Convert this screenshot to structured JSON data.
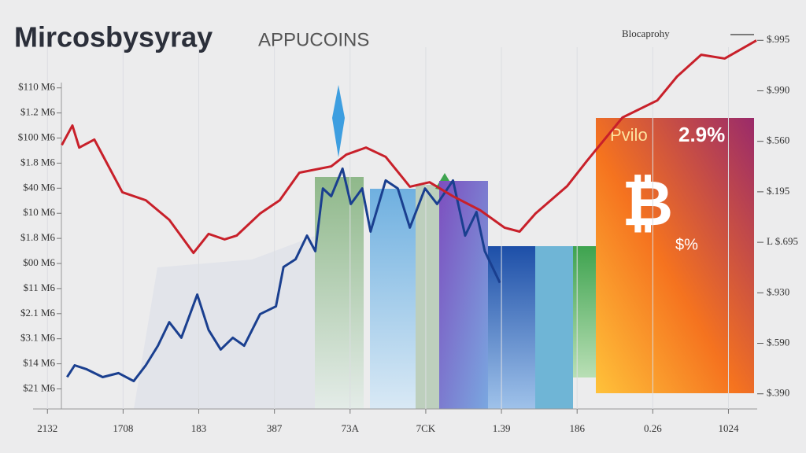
{
  "chart_data": {
    "type": "line",
    "title": "Mircosbysyray",
    "subtitle": "APPUCOINS",
    "xlim": [
      -0.19,
      9.38
    ],
    "xticks": [
      {
        "value": 0,
        "label": "2132"
      },
      {
        "value": 1,
        "label": "1708"
      },
      {
        "value": 2,
        "label": "183"
      },
      {
        "value": 3,
        "label": "387"
      },
      {
        "value": 4,
        "label": "73A"
      },
      {
        "value": 5,
        "label": "7CK"
      },
      {
        "value": 6,
        "label": "1.39"
      },
      {
        "value": 7,
        "label": "186"
      },
      {
        "value": 8,
        "label": "0.26"
      },
      {
        "value": 9,
        "label": "1024"
      }
    ],
    "ylim": [
      -0.8,
      14.5
    ],
    "yticks": [
      {
        "value": 0,
        "label": "$21 M6"
      },
      {
        "value": 1,
        "label": "$14 M6"
      },
      {
        "value": 2,
        "label": "$3.1 M6"
      },
      {
        "value": 3,
        "label": "$2.1 M6"
      },
      {
        "value": 4,
        "label": "$11 M6"
      },
      {
        "value": 5,
        "label": "$00 M6"
      },
      {
        "value": 6,
        "label": "$1.8 M6"
      },
      {
        "value": 7,
        "label": "$10 M6"
      },
      {
        "value": 8,
        "label": "$40 M6"
      },
      {
        "value": 9,
        "label": "$1.8 M6"
      },
      {
        "value": 10,
        "label": "$100 M6"
      },
      {
        "value": 11,
        "label": "$1.2 M6"
      },
      {
        "value": 12,
        "label": "$110 M6"
      }
    ],
    "y2lim": [
      -0.3,
      7.3
    ],
    "y2ticks": [
      {
        "value": 0,
        "label": "$.390"
      },
      {
        "value": 1,
        "label": "$.590"
      },
      {
        "value": 2,
        "label": "$.930"
      },
      {
        "value": 3,
        "label": "L $.695"
      },
      {
        "value": 4,
        "label": "$.195"
      },
      {
        "value": 5,
        "label": "$.560"
      },
      {
        "value": 6,
        "label": "$.990"
      },
      {
        "value": 7,
        "label": "$.995"
      }
    ],
    "grid": true,
    "legend": "top-right",
    "series": [
      {
        "name": "Blocaprohy",
        "color": "#c8202a",
        "x": [
          0.19,
          0.33,
          0.42,
          0.62,
          0.99,
          1.3,
          1.61,
          1.93,
          2.13,
          2.34,
          2.5,
          2.81,
          3.07,
          3.33,
          3.75,
          3.95,
          4.21,
          4.47,
          4.79,
          5.05,
          5.36,
          5.72,
          6.04,
          6.24,
          6.45,
          6.87,
          7.13,
          7.6,
          8.06,
          8.32,
          8.64,
          8.95,
          9.37
        ],
        "values": [
          9.72,
          10.5,
          9.62,
          9.94,
          7.84,
          7.52,
          6.74,
          5.42,
          6.18,
          5.96,
          6.11,
          6.99,
          7.52,
          8.62,
          8.87,
          9.34,
          9.62,
          9.25,
          8.06,
          8.24,
          7.68,
          7.12,
          6.43,
          6.27,
          6.99,
          8.09,
          9.09,
          10.82,
          11.5,
          12.45,
          13.32,
          13.17,
          13.89
        ]
      },
      {
        "color": "#1a3f8f",
        "x": [
          0.26,
          0.36,
          0.52,
          0.73,
          0.94,
          1.14,
          1.3,
          1.46,
          1.61,
          1.77,
          1.98,
          2.13,
          2.29,
          2.45,
          2.6,
          2.81,
          3.02,
          3.12,
          3.28,
          3.43,
          3.54,
          3.64,
          3.75,
          3.9,
          4.01,
          4.16,
          4.27,
          4.47,
          4.63,
          4.79,
          4.99,
          5.15,
          5.36,
          5.52,
          5.67,
          5.78,
          5.98
        ],
        "values": [
          0.47,
          0.94,
          0.78,
          0.47,
          0.63,
          0.31,
          0.94,
          1.72,
          2.66,
          2.04,
          3.76,
          2.35,
          1.57,
          2.04,
          1.72,
          2.98,
          3.29,
          4.86,
          5.17,
          6.11,
          5.49,
          7.99,
          7.68,
          8.78,
          7.37,
          7.99,
          6.27,
          8.31,
          7.99,
          6.43,
          7.99,
          7.37,
          8.31,
          6.11,
          7.05,
          5.49,
          4.23
        ]
      }
    ]
  },
  "callout": {
    "label": "Pvilo",
    "value": "2.9%",
    "symbol": "₿",
    "note": "$%"
  }
}
